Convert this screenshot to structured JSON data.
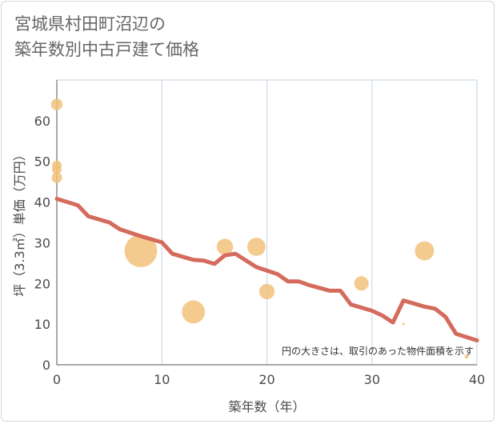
{
  "title_line1": "宮城県村田町沼辺の",
  "title_line2": "築年数別中古戸建て価格",
  "chart_data": {
    "type": "scatter",
    "title": "宮城県村田町沼辺の築年数別中古戸建て価格",
    "xlabel": "築年数（年）",
    "ylabel": "坪（3.3㎡）単価（万円）",
    "xlim": [
      0,
      40
    ],
    "ylim": [
      0,
      70
    ],
    "xticks": [
      0,
      10,
      20,
      30,
      40
    ],
    "yticks": [
      0,
      10,
      20,
      30,
      40,
      50,
      60
    ],
    "grid": true,
    "note": "円の大きさは、取引のあった物件面積を示す",
    "colors": {
      "points": "#f2c27a",
      "trend": "#d46b5c",
      "grid": "#c9d6e6",
      "frame": "#bfcfe3"
    },
    "points": [
      {
        "x": 0,
        "y": 64,
        "size": 1.2
      },
      {
        "x": 0,
        "y": 49,
        "size": 1.0
      },
      {
        "x": 0,
        "y": 48,
        "size": 1.0
      },
      {
        "x": 0,
        "y": 46,
        "size": 1.1
      },
      {
        "x": 8,
        "y": 28,
        "size": 3.4
      },
      {
        "x": 13,
        "y": 13,
        "size": 2.4
      },
      {
        "x": 16,
        "y": 29,
        "size": 1.7
      },
      {
        "x": 19,
        "y": 29,
        "size": 1.9
      },
      {
        "x": 20,
        "y": 18,
        "size": 1.6
      },
      {
        "x": 29,
        "y": 20,
        "size": 1.5
      },
      {
        "x": 33,
        "y": 10,
        "size": 0.25
      },
      {
        "x": 35,
        "y": 28,
        "size": 2.0
      },
      {
        "x": 39,
        "y": 2,
        "size": 0.4
      }
    ],
    "series": [
      {
        "name": "trend",
        "x": [
          0,
          2,
          3,
          5,
          6,
          8,
          10,
          11,
          13,
          14,
          15,
          16,
          17,
          19,
          21,
          22,
          23,
          24,
          26,
          27,
          28,
          30,
          31,
          32,
          33,
          35,
          36,
          37,
          38,
          40
        ],
        "y": [
          40.8,
          39.2,
          36.5,
          35.0,
          33.3,
          31.6,
          30.1,
          27.3,
          25.8,
          25.6,
          24.8,
          26.9,
          27.3,
          24.0,
          22.3,
          20.5,
          20.5,
          19.6,
          18.2,
          18.2,
          14.8,
          13.3,
          12.1,
          10.4,
          15.8,
          14.3,
          13.8,
          11.8,
          7.6,
          6.0
        ]
      }
    ]
  }
}
